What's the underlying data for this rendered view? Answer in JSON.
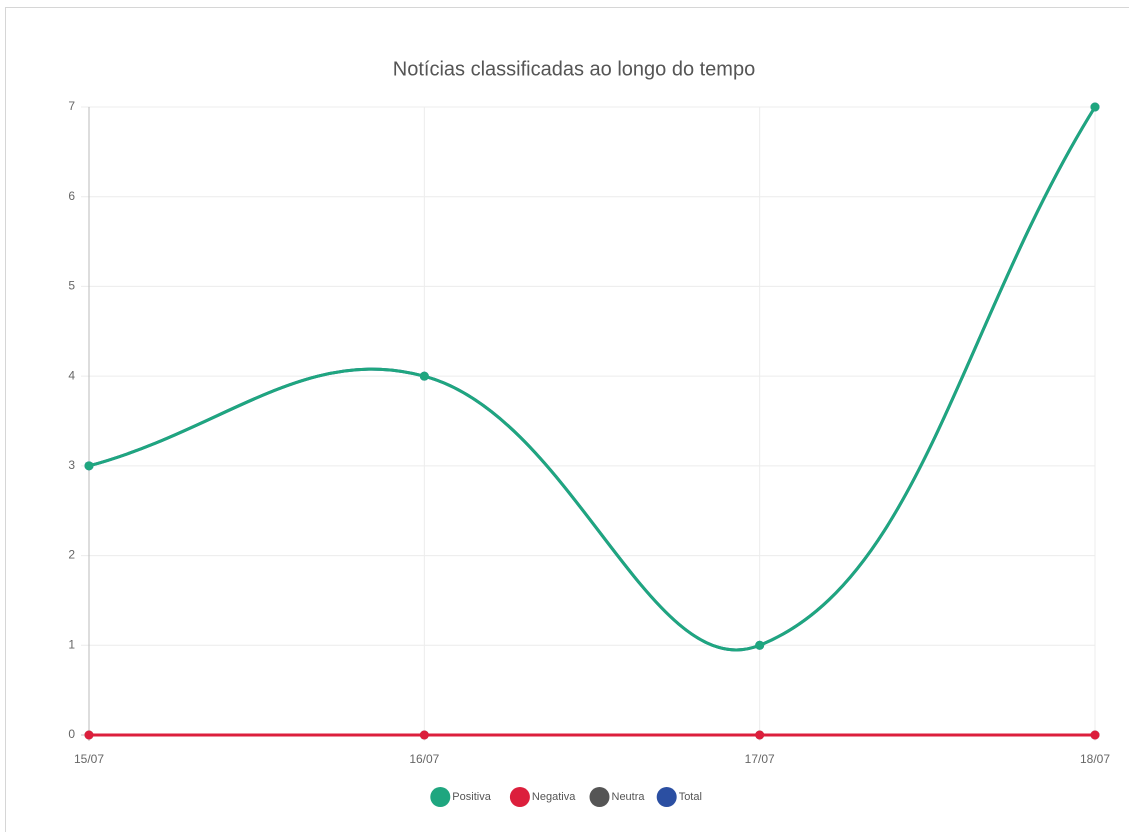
{
  "chart_data": {
    "type": "line",
    "title": "Notícias classificadas ao longo do tempo",
    "categories": [
      "15/07",
      "16/07",
      "17/07",
      "18/07"
    ],
    "series": [
      {
        "name": "Positiva",
        "color": "#1fa67f",
        "values": [
          3,
          4,
          1,
          7
        ]
      },
      {
        "name": "Negativa",
        "color": "#dc1f3c",
        "values": [
          0,
          0,
          0,
          0
        ]
      },
      {
        "name": "Neutra",
        "color": "#555555",
        "values": [
          0,
          0,
          0,
          0
        ]
      },
      {
        "name": "Total",
        "color": "#2b4fa2",
        "values": [
          3,
          4,
          1,
          7
        ]
      }
    ],
    "ylim": [
      0,
      7
    ],
    "yticks": [
      0,
      1,
      2,
      3,
      4,
      5,
      6,
      7
    ],
    "grid": true,
    "legend": "bottom"
  }
}
